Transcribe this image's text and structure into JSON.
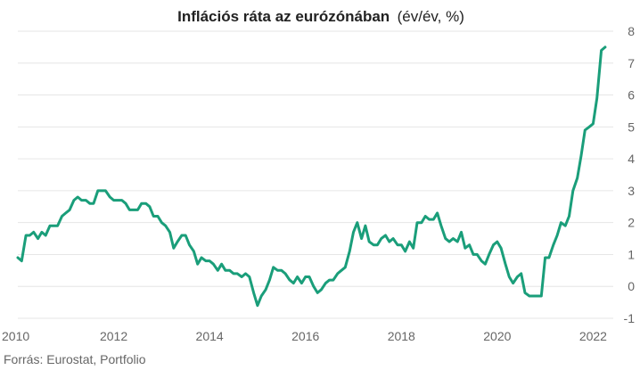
{
  "chart_data": {
    "type": "line",
    "title": "Inflációs ráta az eurózónában",
    "subtitle": "(év/év, %)",
    "source": "Forrás: Eurostat, Portfolio",
    "xlabel": "",
    "ylabel": "",
    "xlim": [
      2010.0,
      2022.42
    ],
    "ylim": [
      -1,
      8
    ],
    "y_ticks": [
      "-1",
      "0",
      "1",
      "2",
      "3",
      "4",
      "5",
      "6",
      "7",
      "8"
    ],
    "x_ticks": [
      "2010",
      "2012",
      "2014",
      "2016",
      "2018",
      "2020",
      "2022"
    ],
    "grid": true,
    "line_color": "#1a9e7a",
    "series": [
      {
        "x": [
          2010.0,
          2010.08,
          2010.17,
          2010.25,
          2010.33,
          2010.42,
          2010.5,
          2010.58,
          2010.67,
          2010.75,
          2010.83,
          2010.92,
          2011.0,
          2011.08,
          2011.17,
          2011.25,
          2011.33,
          2011.42,
          2011.5,
          2011.58,
          2011.67,
          2011.75,
          2011.83,
          2011.92,
          2012.0,
          2012.08,
          2012.17,
          2012.25,
          2012.33,
          2012.42,
          2012.5,
          2012.58,
          2012.67,
          2012.75,
          2012.83,
          2012.92,
          2013.0,
          2013.08,
          2013.17,
          2013.25,
          2013.33,
          2013.42,
          2013.5,
          2013.58,
          2013.67,
          2013.75,
          2013.83,
          2013.92,
          2014.0,
          2014.08,
          2014.17,
          2014.25,
          2014.33,
          2014.42,
          2014.5,
          2014.58,
          2014.67,
          2014.75,
          2014.83,
          2014.92,
          2015.0,
          2015.08,
          2015.17,
          2015.25,
          2015.33,
          2015.42,
          2015.5,
          2015.58,
          2015.67,
          2015.75,
          2015.83,
          2015.92,
          2016.0,
          2016.08,
          2016.17,
          2016.25,
          2016.33,
          2016.42,
          2016.5,
          2016.58,
          2016.67,
          2016.75,
          2016.83,
          2016.92,
          2017.0,
          2017.08,
          2017.17,
          2017.25,
          2017.33,
          2017.42,
          2017.5,
          2017.58,
          2017.67,
          2017.75,
          2017.83,
          2017.92,
          2018.0,
          2018.08,
          2018.17,
          2018.25,
          2018.33,
          2018.42,
          2018.5,
          2018.58,
          2018.67,
          2018.75,
          2018.83,
          2018.92,
          2019.0,
          2019.08,
          2019.17,
          2019.25,
          2019.33,
          2019.42,
          2019.5,
          2019.58,
          2019.67,
          2019.75,
          2019.83,
          2019.92,
          2020.0,
          2020.08,
          2020.17,
          2020.25,
          2020.33,
          2020.42,
          2020.5,
          2020.58,
          2020.67,
          2020.75,
          2020.83,
          2020.92,
          2021.0,
          2021.08,
          2021.17,
          2021.25,
          2021.33,
          2021.42,
          2021.5,
          2021.58,
          2021.67,
          2021.75,
          2021.83,
          2021.92,
          2022.0,
          2022.08,
          2022.17,
          2022.25
        ],
        "values": [
          0.9,
          0.8,
          1.6,
          1.6,
          1.7,
          1.5,
          1.7,
          1.6,
          1.9,
          1.9,
          1.9,
          2.2,
          2.3,
          2.4,
          2.7,
          2.8,
          2.7,
          2.7,
          2.6,
          2.6,
          3.0,
          3.0,
          3.0,
          2.8,
          2.7,
          2.7,
          2.7,
          2.6,
          2.4,
          2.4,
          2.4,
          2.6,
          2.6,
          2.5,
          2.2,
          2.2,
          2.0,
          1.9,
          1.7,
          1.2,
          1.4,
          1.6,
          1.6,
          1.3,
          1.1,
          0.7,
          0.9,
          0.8,
          0.8,
          0.7,
          0.5,
          0.7,
          0.5,
          0.5,
          0.4,
          0.4,
          0.3,
          0.4,
          0.3,
          -0.2,
          -0.6,
          -0.3,
          -0.1,
          0.2,
          0.6,
          0.5,
          0.5,
          0.4,
          0.2,
          0.1,
          0.3,
          0.1,
          0.3,
          0.3,
          0.0,
          -0.2,
          -0.1,
          0.1,
          0.2,
          0.2,
          0.4,
          0.5,
          0.6,
          1.1,
          1.7,
          2.0,
          1.5,
          1.9,
          1.4,
          1.3,
          1.3,
          1.5,
          1.6,
          1.4,
          1.5,
          1.3,
          1.3,
          1.1,
          1.4,
          1.2,
          2.0,
          2.0,
          2.2,
          2.1,
          2.1,
          2.3,
          1.9,
          1.5,
          1.4,
          1.5,
          1.4,
          1.7,
          1.2,
          1.3,
          1.0,
          1.0,
          0.8,
          0.7,
          1.0,
          1.3,
          1.4,
          1.2,
          0.7,
          0.3,
          0.1,
          0.3,
          0.4,
          -0.2,
          -0.3,
          -0.3,
          -0.3,
          -0.3,
          0.9,
          0.9,
          1.3,
          1.6,
          2.0,
          1.9,
          2.2,
          3.0,
          3.4,
          4.1,
          4.9,
          5.0,
          5.1,
          5.9,
          7.4,
          7.5
        ]
      }
    ]
  }
}
